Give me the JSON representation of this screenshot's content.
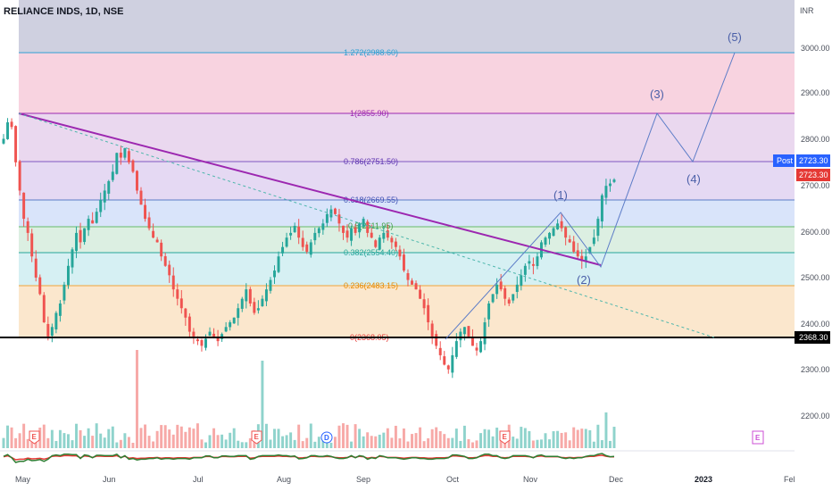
{
  "title": "RELIANCE INDS, 1D, NSE",
  "currency": "INR",
  "y_ticks": [
    "3000.00",
    "2900.00",
    "2800.00",
    "2700.00",
    "2600.00",
    "2500.00",
    "2400.00",
    "2300.00",
    "2200.00"
  ],
  "x_ticks": [
    "May",
    "Jun",
    "Jul",
    "Aug",
    "Sep",
    "Oct",
    "Nov",
    "Dec",
    "2023",
    "Fel"
  ],
  "price_tags": {
    "post_label": "Post",
    "post_value": "2723.30",
    "last_value": "2723.30",
    "low_value": "2368.30"
  },
  "fib_labels": [
    "1.272(2988.60)",
    "1(2855.90)",
    "0.786(2751.50)",
    "0.618(2669.55)",
    "0.5(2611.95)",
    "0.382(2554.40)",
    "0.236(2483.15)",
    "0(2368.05)"
  ],
  "wave_labels": [
    "(1)",
    "(2)",
    "(3)",
    "(4)",
    "(5)"
  ],
  "event_markers": [
    "E",
    "E",
    "D",
    "E",
    "E"
  ],
  "colors": {
    "up": "#26a69a",
    "down": "#ef5350",
    "vol_up": "#8fd3cc",
    "vol_down": "#f7a9a7",
    "trendline": "#9c27b0",
    "dashed": "#4db6ac",
    "wave": "#5c7cc7",
    "hline": "#000000",
    "post": "#2962ff"
  },
  "chart_data": {
    "type": "candlestick",
    "title": "RELIANCE INDS, 1D, NSE",
    "y_axis_label": "INR",
    "ylim": [
      2255,
      3105
    ],
    "fib_levels": [
      {
        "ratio": 1.272,
        "price": 2988.6
      },
      {
        "ratio": 1,
        "price": 2855.9
      },
      {
        "ratio": 0.786,
        "price": 2751.5
      },
      {
        "ratio": 0.618,
        "price": 2669.55
      },
      {
        "ratio": 0.5,
        "price": 2611.95
      },
      {
        "ratio": 0.382,
        "price": 2554.4
      },
      {
        "ratio": 0.236,
        "price": 2483.15
      },
      {
        "ratio": 0,
        "price": 2368.05
      }
    ],
    "horizontal_line": 2368.3,
    "last_price": 2723.3,
    "close": [
      2810,
      2845,
      2835,
      2760,
      2700,
      2640,
      2610,
      2560,
      2515,
      2480,
      2420,
      2390,
      2410,
      2440,
      2460,
      2500,
      2540,
      2575,
      2610,
      2590,
      2620,
      2640,
      2630,
      2655,
      2680,
      2700,
      2720,
      2740,
      2780,
      2770,
      2790,
      2760,
      2740,
      2700,
      2670,
      2640,
      2620,
      2600,
      2590,
      2560,
      2540,
      2520,
      2490,
      2470,
      2450,
      2430,
      2400,
      2390,
      2380,
      2370,
      2385,
      2400,
      2390,
      2380,
      2395,
      2410,
      2420,
      2430,
      2450,
      2470,
      2490,
      2460,
      2440,
      2450,
      2470,
      2490,
      2510,
      2530,
      2560,
      2580,
      2600,
      2610,
      2625,
      2600,
      2580,
      2570,
      2590,
      2610,
      2620,
      2630,
      2650,
      2660,
      2650,
      2630,
      2610,
      2600,
      2620,
      2610,
      2630,
      2640,
      2610,
      2600,
      2580,
      2600,
      2610,
      2600,
      2590,
      2580,
      2560,
      2530,
      2510,
      2500,
      2490,
      2470,
      2450,
      2420,
      2390,
      2370,
      2350,
      2330,
      2320,
      2350,
      2380,
      2400,
      2410,
      2390,
      2370,
      2360,
      2380,
      2420,
      2460,
      2480,
      2500,
      2490,
      2470,
      2460,
      2480,
      2500,
      2520,
      2540,
      2550,
      2540,
      2560,
      2590,
      2600,
      2610,
      2620,
      2630,
      2620,
      2600,
      2590,
      2570,
      2560,
      2550,
      2560,
      2580,
      2600,
      2640,
      2690,
      2710,
      2715,
      2723.3
    ],
    "volume_note": "relative volume bars under price pane"
  }
}
